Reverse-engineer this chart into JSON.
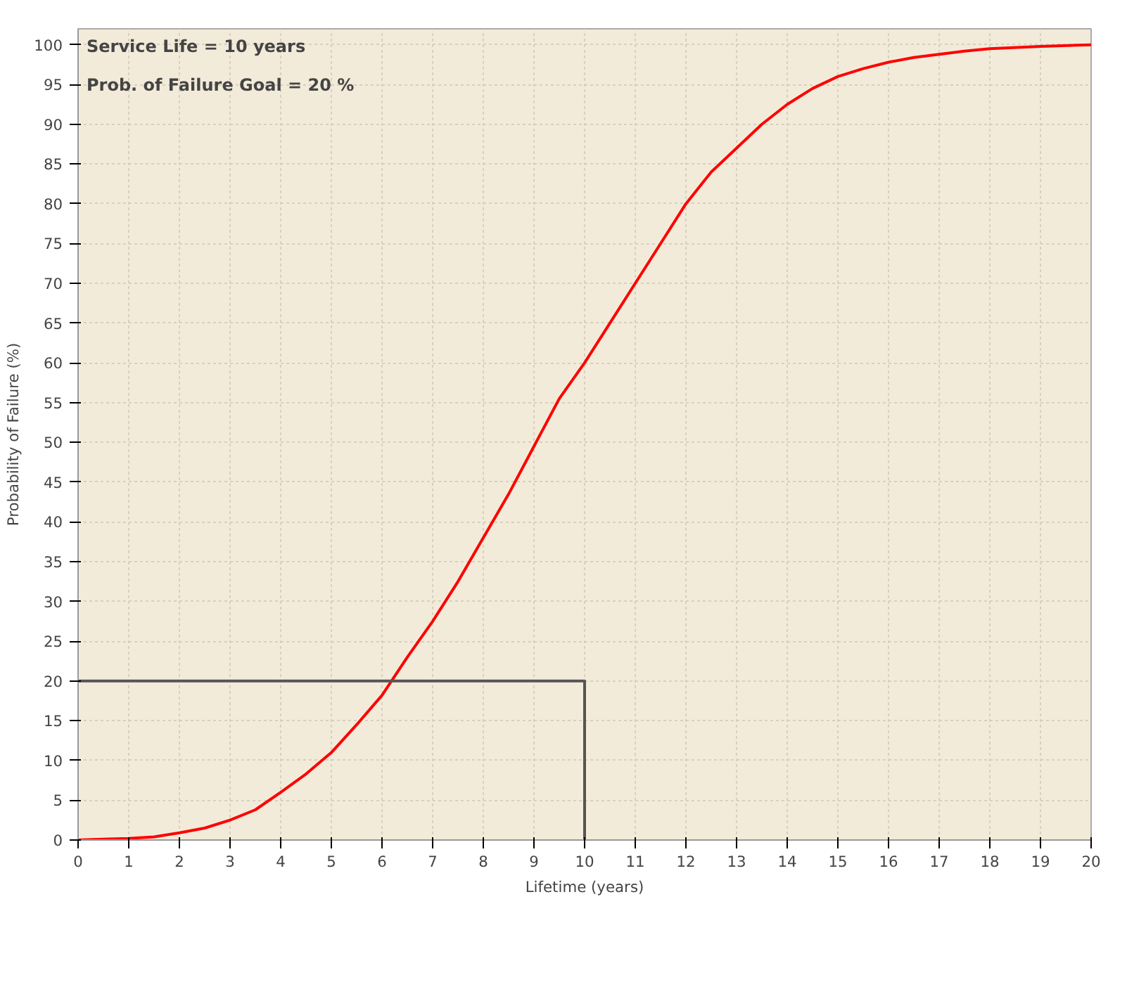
{
  "chart_data": {
    "type": "line",
    "xlabel": "Lifetime (years)",
    "ylabel": "Probability of Failure (%)",
    "annotations": [
      "Service Life = 10 years",
      "Prob. of Failure Goal = 20 %"
    ],
    "xlim": [
      0,
      20
    ],
    "ylim": [
      0,
      102
    ],
    "xticks": [
      0,
      1,
      2,
      3,
      4,
      5,
      6,
      7,
      8,
      9,
      10,
      11,
      12,
      13,
      14,
      15,
      16,
      17,
      18,
      19,
      20
    ],
    "yticks": [
      0,
      5,
      10,
      15,
      20,
      25,
      30,
      35,
      40,
      45,
      50,
      55,
      60,
      65,
      70,
      75,
      80,
      85,
      90,
      95,
      100
    ],
    "grid": true,
    "series": [
      {
        "color": "#ff0000",
        "x": [
          0,
          0.5,
          1,
          1.5,
          2,
          2.5,
          3,
          3.5,
          4,
          4.5,
          5,
          5.5,
          6,
          6.5,
          7,
          7.5,
          8,
          8.5,
          9,
          9.5,
          10,
          10.5,
          11,
          11.5,
          12,
          12.5,
          13,
          13.5,
          14,
          14.5,
          15,
          15.5,
          16,
          16.5,
          17,
          17.5,
          18,
          19,
          20
        ],
        "values": [
          0,
          0.1,
          0.2,
          0.4,
          0.9,
          1.5,
          2.5,
          3.8,
          6,
          8.3,
          11,
          14.5,
          18.2,
          23,
          27.5,
          32.5,
          38,
          43.5,
          49.5,
          55.5,
          60,
          65,
          70,
          75,
          80,
          84,
          87,
          90,
          92.5,
          94.5,
          96,
          97,
          97.8,
          98.4,
          98.8,
          99.2,
          99.5,
          99.8,
          100
        ]
      },
      {
        "color": "#555555",
        "x": [
          0,
          10,
          10
        ],
        "values": [
          20,
          20,
          0
        ]
      }
    ]
  }
}
